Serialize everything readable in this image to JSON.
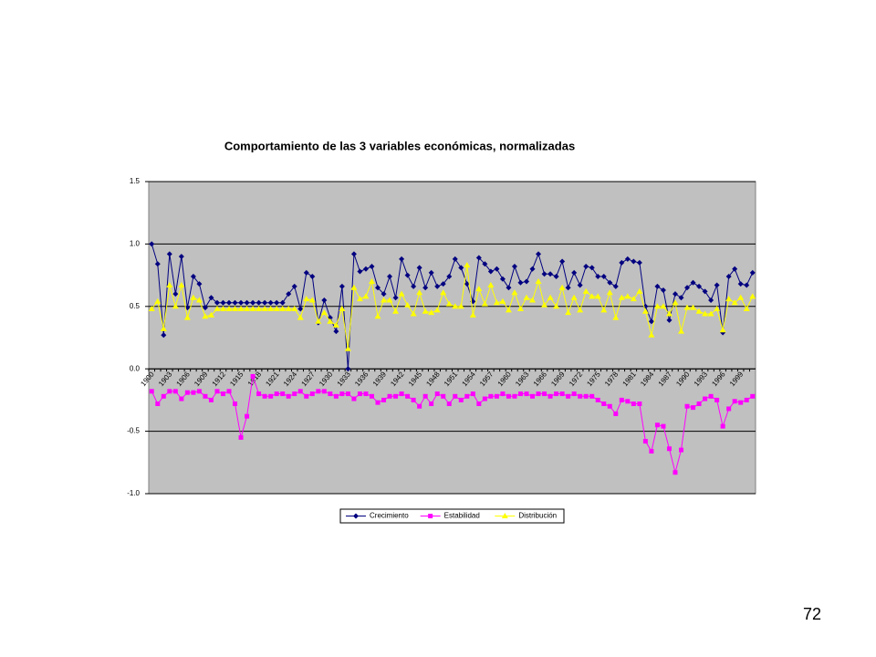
{
  "chart_data": {
    "type": "line",
    "title": "Comportamiento de las 3 variables económicas, normalizadas",
    "categories": [
      "1900",
      null,
      null,
      "1903",
      null,
      null,
      "1906",
      null,
      null,
      "1909",
      null,
      null,
      "1912",
      null,
      null,
      "1915",
      null,
      null,
      "1918",
      null,
      null,
      "1921",
      null,
      null,
      "1924",
      null,
      null,
      "1927",
      null,
      null,
      "1930",
      null,
      null,
      "1933",
      null,
      null,
      "1936",
      null,
      null,
      "1939",
      null,
      null,
      "1942",
      null,
      null,
      "1945",
      null,
      null,
      "1948",
      null,
      null,
      "1951",
      null,
      null,
      "1954",
      null,
      null,
      "1957",
      null,
      null,
      "1960",
      null,
      null,
      "1963",
      null,
      null,
      "1966",
      null,
      null,
      "1969",
      null,
      null,
      "1972",
      null,
      null,
      "1975",
      null,
      null,
      "1978",
      null,
      null,
      "1981",
      null,
      null,
      "1984",
      null,
      null,
      "1987",
      null,
      null,
      "1990",
      null,
      null,
      "1993",
      null,
      null,
      "1996",
      null,
      null,
      "1999",
      null,
      null
    ],
    "series": [
      {
        "name": "Crecimiento",
        "color": "#000080",
        "marker": "diamond",
        "values": [
          1.0,
          0.84,
          0.27,
          0.92,
          0.6,
          0.9,
          0.49,
          0.74,
          0.68,
          0.49,
          0.57,
          0.53,
          0.53,
          0.53,
          0.53,
          0.53,
          0.53,
          0.53,
          0.53,
          0.53,
          0.53,
          0.53,
          0.53,
          0.6,
          0.66,
          0.48,
          0.77,
          0.74,
          0.37,
          0.55,
          0.41,
          0.3,
          0.66,
          0.0,
          0.92,
          0.78,
          0.8,
          0.82,
          0.65,
          0.6,
          0.74,
          0.57,
          0.88,
          0.75,
          0.66,
          0.81,
          0.65,
          0.77,
          0.66,
          0.68,
          0.74,
          0.88,
          0.81,
          0.68,
          0.54,
          0.89,
          0.84,
          0.78,
          0.8,
          0.72,
          0.65,
          0.82,
          0.69,
          0.7,
          0.8,
          0.92,
          0.76,
          0.76,
          0.74,
          0.86,
          0.65,
          0.77,
          0.67,
          0.82,
          0.81,
          0.74,
          0.74,
          0.69,
          0.66,
          0.85,
          0.88,
          0.86,
          0.85,
          0.5,
          0.38,
          0.66,
          0.63,
          0.39,
          0.6,
          0.57,
          0.65,
          0.69,
          0.66,
          0.62,
          0.55,
          0.67,
          0.29,
          0.74,
          0.8,
          0.68,
          0.67,
          0.77
        ]
      },
      {
        "name": "Estabilidad",
        "color": "#ff00ff",
        "marker": "square",
        "values": [
          -0.18,
          -0.28,
          -0.22,
          -0.18,
          -0.18,
          -0.24,
          -0.19,
          -0.19,
          -0.18,
          -0.22,
          -0.25,
          -0.18,
          -0.2,
          -0.18,
          -0.28,
          -0.55,
          -0.38,
          -0.06,
          -0.2,
          -0.22,
          -0.22,
          -0.2,
          -0.2,
          -0.22,
          -0.2,
          -0.18,
          -0.22,
          -0.2,
          -0.18,
          -0.18,
          -0.2,
          -0.22,
          -0.2,
          -0.2,
          -0.24,
          -0.2,
          -0.2,
          -0.22,
          -0.27,
          -0.25,
          -0.22,
          -0.22,
          -0.2,
          -0.22,
          -0.25,
          -0.3,
          -0.22,
          -0.28,
          -0.2,
          -0.22,
          -0.28,
          -0.22,
          -0.25,
          -0.22,
          -0.2,
          -0.28,
          -0.24,
          -0.22,
          -0.22,
          -0.2,
          -0.22,
          -0.22,
          -0.2,
          -0.2,
          -0.22,
          -0.2,
          -0.2,
          -0.22,
          -0.2,
          -0.2,
          -0.22,
          -0.2,
          -0.22,
          -0.22,
          -0.22,
          -0.25,
          -0.28,
          -0.3,
          -0.36,
          -0.25,
          -0.26,
          -0.28,
          -0.28,
          -0.58,
          -0.66,
          -0.45,
          -0.46,
          -0.64,
          -0.83,
          -0.65,
          -0.3,
          -0.31,
          -0.28,
          -0.24,
          -0.22,
          -0.25,
          -0.46,
          -0.32,
          -0.26,
          -0.27,
          -0.25,
          -0.22
        ]
      },
      {
        "name": "Distribución",
        "color": "#ffff00",
        "marker": "triangle",
        "values": [
          0.48,
          0.54,
          0.32,
          0.67,
          0.5,
          0.67,
          0.41,
          0.57,
          0.55,
          0.42,
          0.43,
          0.48,
          0.48,
          0.48,
          0.48,
          0.48,
          0.48,
          0.48,
          0.48,
          0.48,
          0.48,
          0.48,
          0.48,
          0.48,
          0.48,
          0.41,
          0.56,
          0.55,
          0.38,
          0.45,
          0.38,
          0.35,
          0.48,
          0.16,
          0.65,
          0.56,
          0.58,
          0.7,
          0.42,
          0.55,
          0.55,
          0.46,
          0.6,
          0.51,
          0.44,
          0.61,
          0.46,
          0.45,
          0.47,
          0.61,
          0.52,
          0.5,
          0.5,
          0.83,
          0.43,
          0.64,
          0.52,
          0.67,
          0.53,
          0.54,
          0.47,
          0.61,
          0.48,
          0.57,
          0.55,
          0.7,
          0.51,
          0.57,
          0.5,
          0.65,
          0.45,
          0.57,
          0.47,
          0.62,
          0.58,
          0.58,
          0.47,
          0.61,
          0.41,
          0.57,
          0.58,
          0.56,
          0.62,
          0.46,
          0.27,
          0.5,
          0.5,
          0.44,
          0.53,
          0.3,
          0.49,
          0.49,
          0.46,
          0.44,
          0.44,
          0.48,
          0.31,
          0.56,
          0.53,
          0.57,
          0.48,
          0.58
        ]
      }
    ],
    "ylim": [
      -1,
      1.5
    ],
    "yticks": [
      {
        "value": -1,
        "label": "-1.0"
      },
      -0.5,
      {
        "value": 0,
        "label": "0.0"
      },
      0.5,
      {
        "value": 1,
        "label": "1.0"
      },
      1.5
    ],
    "grid": true,
    "plot_background": "#c0c0c0",
    "legend": "bottom"
  },
  "page_number": "72"
}
